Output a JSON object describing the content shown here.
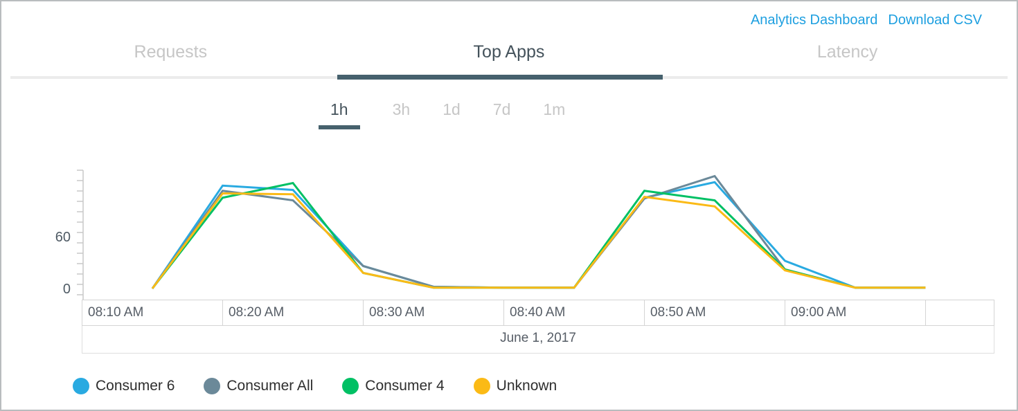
{
  "header": {
    "links": [
      {
        "label": "Analytics Dashboard"
      },
      {
        "label": "Download CSV"
      }
    ],
    "link_color": "#1d9fe0"
  },
  "tabs": {
    "items": [
      {
        "label": "Requests",
        "active": false
      },
      {
        "label": "Top Apps",
        "active": true
      },
      {
        "label": "Latency",
        "active": false
      }
    ],
    "active_underline_color": "#46616d"
  },
  "time_ranges": {
    "items": [
      {
        "label": "1h",
        "active": true
      },
      {
        "label": "3h",
        "active": false
      },
      {
        "label": "1d",
        "active": false
      },
      {
        "label": "7d",
        "active": false
      },
      {
        "label": "1m",
        "active": false
      }
    ]
  },
  "chart_data": {
    "type": "line",
    "title": "",
    "xlabel": "",
    "ylabel": "",
    "x": [
      "08:15 AM",
      "08:20 AM",
      "08:25 AM",
      "08:30 AM",
      "08:35 AM",
      "08:40 AM",
      "08:45 AM",
      "08:50 AM",
      "08:55 AM",
      "09:00 AM",
      "09:05 AM",
      "09:10 AM"
    ],
    "x_axis_cells": [
      "08:10 AM",
      "08:20 AM",
      "08:30 AM",
      "08:40 AM",
      "08:50 AM",
      "09:00 AM",
      ""
    ],
    "x_axis_caption": "June 1, 2017",
    "y_ticks": [
      {
        "value": 60,
        "label": "60"
      },
      {
        "value": 0,
        "label": "0"
      }
    ],
    "ylim": [
      0,
      145
    ],
    "grid": false,
    "legend_position": "bottom",
    "series": [
      {
        "name": "Consumer 6",
        "color": "#29aae1",
        "values": [
          0,
          119,
          114,
          26,
          2,
          1,
          1,
          105,
          123,
          32,
          1,
          1
        ]
      },
      {
        "name": "Consumer All",
        "color": "#6b8999",
        "values": [
          0,
          113,
          102,
          26,
          2,
          1,
          1,
          104,
          130,
          22,
          1,
          1
        ]
      },
      {
        "name": "Consumer 4",
        "color": "#00c064",
        "values": [
          0,
          105,
          122,
          18,
          1,
          1,
          1,
          113,
          102,
          22,
          1,
          1
        ]
      },
      {
        "name": "Unknown",
        "color": "#fbba16",
        "values": [
          0,
          110,
          109,
          18,
          1,
          1,
          1,
          106,
          95,
          21,
          1,
          1
        ]
      }
    ]
  }
}
